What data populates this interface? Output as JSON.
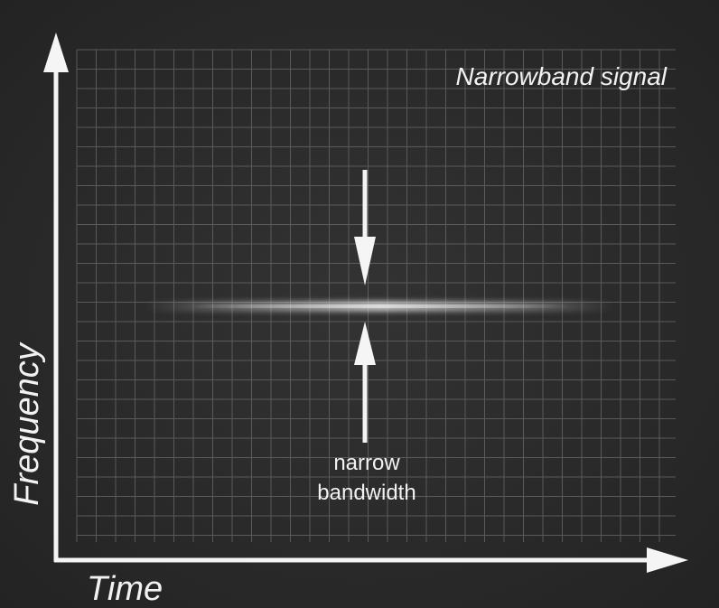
{
  "diagram": {
    "title": "Narrowband signal",
    "x_axis_label": "Time",
    "y_axis_label": "Frequency",
    "annotation_line1": "narrow",
    "annotation_line2": "bandwidth",
    "colors": {
      "background": "#2b2b2b",
      "grid": "#6a6a6a",
      "axis": "#f5f5f5",
      "signal": "#d8d8d8",
      "text": "#f2f2f2"
    }
  }
}
